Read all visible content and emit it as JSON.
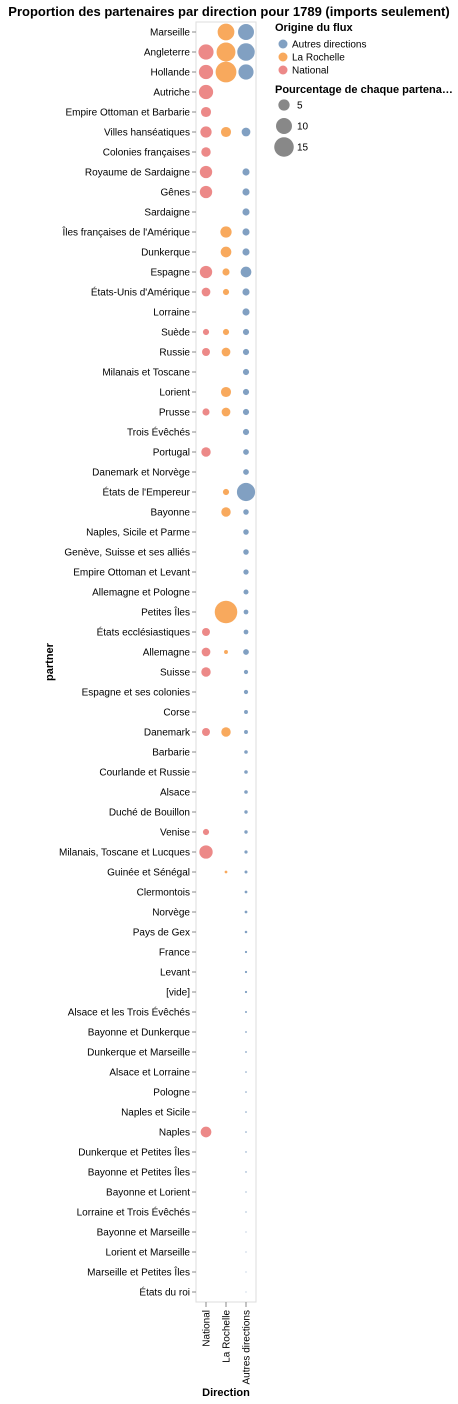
{
  "chart_data": {
    "type": "scatter",
    "title": "Proportion des partenaires par direction pour 1789 (imports seulement)",
    "xlabel": "Direction",
    "ylabel": "partner",
    "x_categories": [
      "National",
      "La Rochelle",
      "Autres directions"
    ],
    "partners": [
      "Marseille",
      "Angleterre",
      "Hollande",
      "Autriche",
      "Empire Ottoman et Barbarie",
      "Villes hanséatiques",
      "Colonies françaises",
      "Royaume de Sardaigne",
      "Gênes",
      "Sardaigne",
      "Îles françaises de l'Amérique",
      "Dunkerque",
      "Espagne",
      "États-Unis d'Amérique",
      "Lorraine",
      "Suède",
      "Russie",
      "Milanais et Toscane",
      "Lorient",
      "Prusse",
      "Trois Évêchés",
      "Portugal",
      "Danemark et Norvège",
      "États de l'Empereur",
      "Bayonne",
      "Naples, Sicile et Parme",
      "Genève, Suisse et ses alliés",
      "Empire Ottoman et Levant",
      "Allemagne et Pologne",
      "Petites Îles",
      "États ecclésiastiques",
      "Allemagne",
      "Suisse",
      "Espagne et ses colonies",
      "Corse",
      "Danemark",
      "Barbarie",
      "Courlande et Russie",
      "Alsace",
      "Duché de Bouillon",
      "Venise",
      "Milanais, Toscane et Lucques",
      "Guinée et Sénégal",
      "Clermontois",
      "Norvège",
      "Pays de Gex",
      "France",
      "Levant",
      "[vide]",
      "Alsace et les Trois Évêchés",
      "Bayonne et Dunkerque",
      "Dunkerque et Marseille",
      "Alsace et Lorraine",
      "Pologne",
      "Naples et Sicile",
      "Naples",
      "Dunkerque et Petites Îles",
      "Bayonne et Petites Îles",
      "Bayonne et Lorient",
      "Lorraine et Trois Évêchés",
      "Bayonne et Marseille",
      "Lorient et Marseille",
      "Marseille et Petites Îles",
      "États du roi"
    ],
    "series": [
      {
        "name": "National",
        "color": "#e45756",
        "points": [
          [
            "Angleterre",
            9
          ],
          [
            "Hollande",
            8
          ],
          [
            "Autriche",
            8
          ],
          [
            "Empire Ottoman et Barbarie",
            4
          ],
          [
            "Villes hanséatiques",
            5
          ],
          [
            "Colonies françaises",
            3.5
          ],
          [
            "Royaume de Sardaigne",
            6
          ],
          [
            "Gênes",
            6
          ],
          [
            "Espagne",
            6
          ],
          [
            "États-Unis d'Amérique",
            3
          ],
          [
            "Suède",
            1.5
          ],
          [
            "Russie",
            2.5
          ],
          [
            "Prusse",
            2
          ],
          [
            "Portugal",
            3.5
          ],
          [
            "États ecclésiastiques",
            2.5
          ],
          [
            "Allemagne",
            3
          ],
          [
            "Suisse",
            3.5
          ],
          [
            "Danemark",
            2.5
          ],
          [
            "Venise",
            1.5
          ],
          [
            "Milanais, Toscane et Lucques",
            7
          ],
          [
            "Naples",
            4.5
          ]
        ]
      },
      {
        "name": "La Rochelle",
        "color": "#f58518",
        "points": [
          [
            "Marseille",
            11
          ],
          [
            "Angleterre",
            14
          ],
          [
            "Hollande",
            17
          ],
          [
            "Villes hanséatiques",
            4
          ],
          [
            "Îles françaises de l'Amérique",
            5
          ],
          [
            "Dunkerque",
            4.5
          ],
          [
            "Espagne",
            2
          ],
          [
            "États-Unis d'Amérique",
            1.5
          ],
          [
            "Suède",
            1.5
          ],
          [
            "Russie",
            3
          ],
          [
            "Lorient",
            4
          ],
          [
            "Prusse",
            3
          ],
          [
            "États de l'Empereur",
            1.5
          ],
          [
            "Bayonne",
            3.5
          ],
          [
            "Petites Îles",
            20
          ],
          [
            "Allemagne",
            0.6
          ],
          [
            "Danemark",
            3.5
          ],
          [
            "Guinée et Sénégal",
            0.3
          ]
        ]
      },
      {
        "name": "Autres directions",
        "color": "#4c78a8",
        "points": [
          [
            "Marseille",
            10
          ],
          [
            "Angleterre",
            12
          ],
          [
            "Hollande",
            9
          ],
          [
            "Villes hanséatiques",
            3
          ],
          [
            "Royaume de Sardaigne",
            2
          ],
          [
            "Gênes",
            2
          ],
          [
            "Sardaigne",
            2
          ],
          [
            "Îles françaises de l'Amérique",
            2
          ],
          [
            "Dunkerque",
            2
          ],
          [
            "Espagne",
            4.5
          ],
          [
            "États-Unis d'Amérique",
            2
          ],
          [
            "Lorraine",
            2
          ],
          [
            "Suède",
            1.5
          ],
          [
            "Russie",
            1.5
          ],
          [
            "Milanais et Toscane",
            1.5
          ],
          [
            "Lorient",
            1.5
          ],
          [
            "Prusse",
            1.5
          ],
          [
            "Trois Évêchés",
            1.5
          ],
          [
            "Portugal",
            1.3
          ],
          [
            "Danemark et Norvège",
            1.3
          ],
          [
            "États de l'Empereur",
            13
          ],
          [
            "Bayonne",
            1.2
          ],
          [
            "Naples, Sicile et Parme",
            1.2
          ],
          [
            "Genève, Suisse et ses alliés",
            1.2
          ],
          [
            "Empire Ottoman et Levant",
            1.1
          ],
          [
            "Allemagne et Pologne",
            1
          ],
          [
            "Petites Îles",
            0.9
          ],
          [
            "États ecclésiastiques",
            0.9
          ],
          [
            "Allemagne",
            1.3
          ],
          [
            "Suisse",
            0.7
          ],
          [
            "Espagne et ses colonies",
            0.7
          ],
          [
            "Corse",
            0.6
          ],
          [
            "Danemark",
            0.6
          ],
          [
            "Barbarie",
            0.5
          ],
          [
            "Courlande et Russie",
            0.5
          ],
          [
            "Alsace",
            0.5
          ],
          [
            "Duché de Bouillon",
            0.45
          ],
          [
            "Venise",
            0.45
          ],
          [
            "Milanais, Toscane et Lucques",
            0.4
          ],
          [
            "Guinée et Sénégal",
            0.35
          ],
          [
            "Clermontois",
            0.3
          ],
          [
            "Norvège",
            0.3
          ],
          [
            "Pays de Gex",
            0.25
          ],
          [
            "France",
            0.2
          ],
          [
            "Levant",
            0.2
          ],
          [
            "[vide]",
            0.2
          ],
          [
            "Alsace et les Trois Évêchés",
            0.15
          ],
          [
            "Bayonne et Dunkerque",
            0.12
          ],
          [
            "Dunkerque et Marseille",
            0.12
          ],
          [
            "Alsace et Lorraine",
            0.1
          ],
          [
            "Pologne",
            0.1
          ],
          [
            "Naples et Sicile",
            0.1
          ],
          [
            "Naples",
            0.1
          ],
          [
            "Dunkerque et Petites Îles",
            0.08
          ],
          [
            "Bayonne et Petites Îles",
            0.08
          ],
          [
            "Bayonne et Lorient",
            0.06
          ],
          [
            "Lorraine et Trois Évêchés",
            0.06
          ],
          [
            "Bayonne et Marseille",
            0.05
          ],
          [
            "Lorient et Marseille",
            0.05
          ],
          [
            "Marseille et Petites Îles",
            0.04
          ],
          [
            "États du roi",
            0.03
          ]
        ]
      }
    ],
    "legend": {
      "color_title": "Origine du flux",
      "color_entries": [
        "Autres directions",
        "La Rochelle",
        "National"
      ],
      "size_title": "Pourcentage de chaque partena…",
      "size_entries": [
        5,
        10,
        15
      ]
    },
    "grid": false,
    "legend_position": "top-right"
  }
}
